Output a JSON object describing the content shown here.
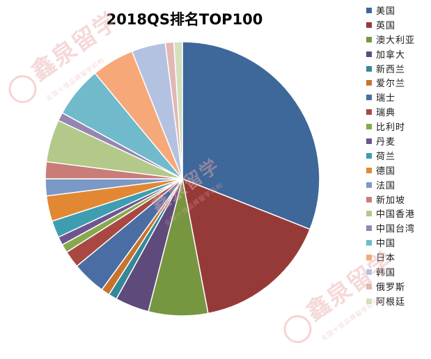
{
  "chart_data": {
    "type": "pie",
    "title": "2018QS排名TOP100",
    "categories": [
      "美国",
      "英国",
      "澳大利亚",
      "加拿大",
      "新西兰",
      "爱尔兰",
      "瑞士",
      "瑞典",
      "比利时",
      "丹麦",
      "荷兰",
      "德国",
      "法国",
      "新加坡",
      "中国香港",
      "中国台湾",
      "中国",
      "日本",
      "韩国",
      "俄罗斯",
      "阿根廷"
    ],
    "values": [
      31,
      16,
      7,
      4,
      1,
      1,
      4,
      2,
      1,
      1,
      2,
      3,
      2,
      2,
      5,
      1,
      6,
      5,
      4,
      1,
      1
    ],
    "colors": [
      "#3e679a",
      "#963a38",
      "#779640",
      "#5f4a7c",
      "#368898",
      "#c7732e",
      "#4a6ea4",
      "#a94843",
      "#87a94e",
      "#6f5590",
      "#3f9db1",
      "#e28833",
      "#7b99c7",
      "#ca7c78",
      "#b2c98a",
      "#9486b1",
      "#70bacc",
      "#f6a878",
      "#b3c2e0",
      "#e3b7b4",
      "#d2e0bd"
    ],
    "legend_position": "right"
  },
  "watermark": {
    "text": "鑫泉留学",
    "subtext": "全国十佳品牌留学机构"
  }
}
